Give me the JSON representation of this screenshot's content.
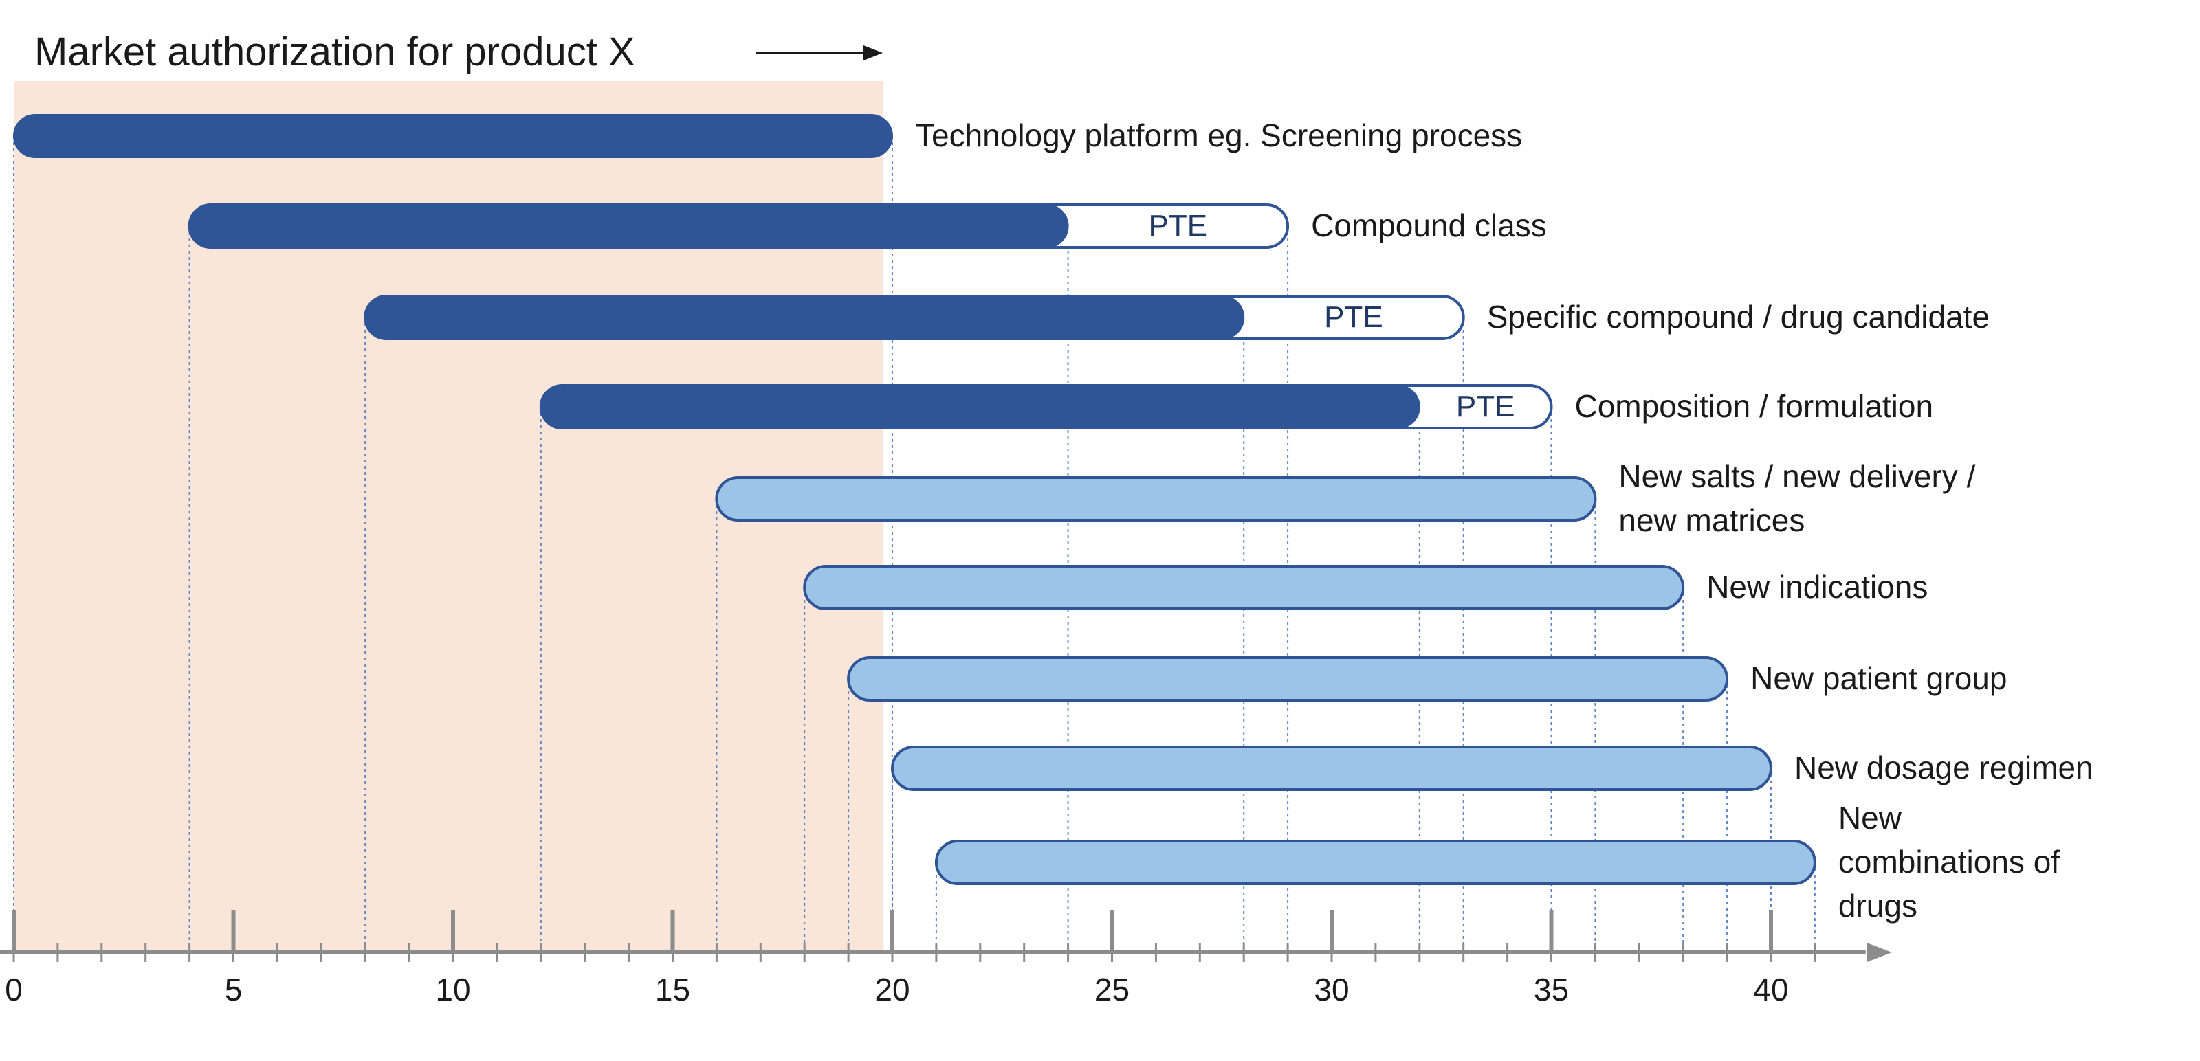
{
  "title": "Market authorization for product X",
  "colors": {
    "highlight": "#fae5d9",
    "dark_bar": "#2f5597",
    "light_bar": "#9dc3e6",
    "outline": "#2f5597",
    "axis": "#8c8c8c",
    "guide": "#4472c4",
    "label": "#1a1a1a",
    "pte_text": "#1f3864"
  },
  "chart_data": {
    "type": "gantt",
    "xlim": [
      0,
      42
    ],
    "x_ticks": [
      "0",
      "5",
      "10",
      "15",
      "20",
      "25",
      "30",
      "35",
      "40"
    ],
    "highlight_range": [
      0,
      19.8
    ],
    "series": [
      {
        "label": "Technology platform eg. Screening process",
        "start": 0,
        "end": 20,
        "pte_end": null,
        "style": "dark"
      },
      {
        "label": "Compound class",
        "start": 4,
        "end": 24,
        "pte_end": 29,
        "pte_label": "PTE",
        "style": "dark"
      },
      {
        "label": "Specific compound / drug candidate",
        "start": 8,
        "end": 28,
        "pte_end": 33,
        "pte_label": "PTE",
        "style": "dark"
      },
      {
        "label": "Composition / formulation",
        "start": 12,
        "end": 32,
        "pte_end": 35,
        "pte_label": "PTE",
        "style": "dark"
      },
      {
        "label": "New salts / new delivery / new matrices",
        "label_lines": [
          "New salts / new delivery /",
          "new matrices"
        ],
        "start": 16,
        "end": 36,
        "pte_end": null,
        "style": "light"
      },
      {
        "label": "New indications",
        "start": 18,
        "end": 38,
        "pte_end": null,
        "style": "light"
      },
      {
        "label": "New patient group",
        "start": 19,
        "end": 39,
        "pte_end": null,
        "style": "light"
      },
      {
        "label": "New dosage regimen",
        "start": 20,
        "end": 40,
        "pte_end": null,
        "style": "light"
      },
      {
        "label": "New combinations of drugs",
        "label_lines": [
          "New",
          "combinations of",
          "drugs"
        ],
        "start": 21,
        "end": 41,
        "pte_end": null,
        "style": "light"
      }
    ]
  }
}
